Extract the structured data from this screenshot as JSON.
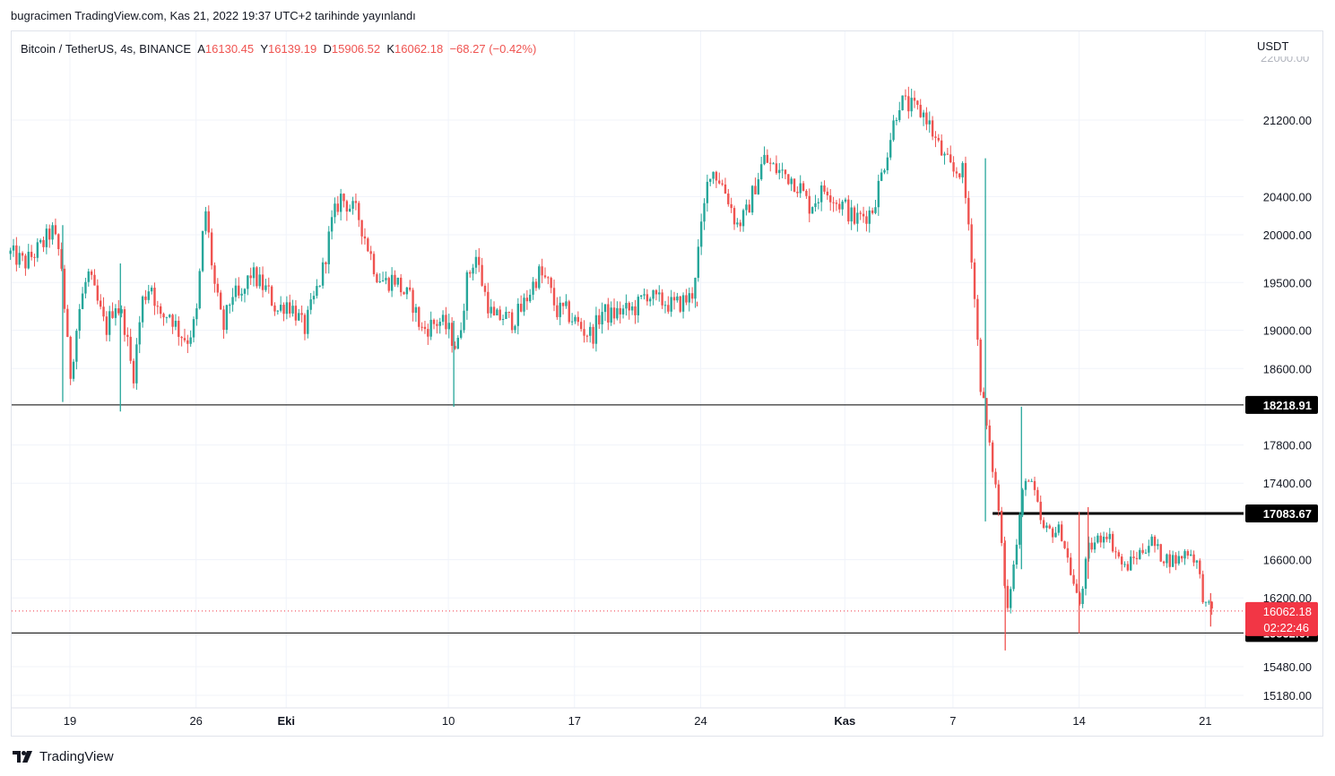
{
  "header": {
    "attribution": "bugracimen TradingView.com, Kas 21, 2022 19:37 UTC+2 tarihinde yayınlandı"
  },
  "legend": {
    "symbol": "Bitcoin / TetherUS, 4s, BINANCE",
    "open_label": "A",
    "open_value": "16130.45",
    "high_label": "Y",
    "high_value": "16139.19",
    "low_label": "D",
    "low_value": "15906.52",
    "close_label": "K",
    "close_value": "16062.18",
    "change": "−68.27 (−0.42%)"
  },
  "footer": {
    "brand": "TradingView"
  },
  "colors": {
    "up": "#26a69a",
    "down": "#ef5350",
    "level_line": "#000000",
    "price_tag": "#f23645",
    "grid": "#f0f3fa"
  },
  "chart_data": {
    "type": "candlestick",
    "currency": "USDT",
    "ylim": [
      15050,
      22050
    ],
    "y_ticks": [
      21200,
      20400,
      20000,
      19500,
      19000,
      18600,
      17800,
      17400,
      16600,
      16200,
      15480,
      15180
    ],
    "y_tick_labels": [
      "21200.00",
      "20400.00",
      "20000.00",
      "19500.00",
      "19000.00",
      "18600.00",
      "17800.00",
      "17400.00",
      "16600.00",
      "16200.00",
      "15480.00",
      "15180.00"
    ],
    "x_labels": [
      {
        "label": "19",
        "day": 0,
        "bold": false
      },
      {
        "label": "26",
        "day": 7,
        "bold": false
      },
      {
        "label": "Eki",
        "day": 12,
        "bold": true
      },
      {
        "label": "10",
        "day": 21,
        "bold": false
      },
      {
        "label": "17",
        "day": 28,
        "bold": false
      },
      {
        "label": "24",
        "day": 35,
        "bold": false
      },
      {
        "label": "Kas",
        "day": 43,
        "bold": true
      },
      {
        "label": "7",
        "day": 49,
        "bold": false
      },
      {
        "label": "14",
        "day": 56,
        "bold": false
      },
      {
        "label": "21",
        "day": 63,
        "bold": false
      }
    ],
    "horizontal_levels": [
      {
        "value": 18218.91,
        "label": "18218.91",
        "from_day": -3.4,
        "weight": 1
      },
      {
        "value": 17083.67,
        "label": "17083.67",
        "from_day": 51.2,
        "weight": 3
      },
      {
        "value": 15832.67,
        "label": "15832.67",
        "from_day": -3.4,
        "weight": 1
      }
    ],
    "last_price": {
      "value": 16062.18,
      "label": "16062.18",
      "countdown": "02:22:46"
    },
    "close_path": [
      [
        -3.3,
        19800
      ],
      [
        -2.5,
        19700
      ],
      [
        -1.5,
        19900
      ],
      [
        -1.0,
        20050
      ],
      [
        -0.5,
        19750
      ],
      [
        0.0,
        18500
      ],
      [
        0.5,
        19200
      ],
      [
        1.0,
        19600
      ],
      [
        1.5,
        19300
      ],
      [
        2.0,
        19000
      ],
      [
        2.5,
        19300
      ],
      [
        3.0,
        19100
      ],
      [
        3.5,
        18500
      ],
      [
        4.0,
        19300
      ],
      [
        4.5,
        19500
      ],
      [
        5.0,
        19100
      ],
      [
        5.5,
        19200
      ],
      [
        6.0,
        19000
      ],
      [
        6.5,
        18900
      ],
      [
        7.0,
        19100
      ],
      [
        7.5,
        20300
      ],
      [
        8.0,
        19500
      ],
      [
        8.5,
        19000
      ],
      [
        9.0,
        19400
      ],
      [
        9.5,
        19300
      ],
      [
        10.0,
        19600
      ],
      [
        10.5,
        19500
      ],
      [
        11.0,
        19400
      ],
      [
        11.5,
        19200
      ],
      [
        12.0,
        19300
      ],
      [
        12.5,
        19200
      ],
      [
        13.0,
        19000
      ],
      [
        13.5,
        19300
      ],
      [
        14.0,
        19600
      ],
      [
        14.5,
        20100
      ],
      [
        15.0,
        20400
      ],
      [
        15.5,
        20300
      ],
      [
        16.0,
        20200
      ],
      [
        16.5,
        19900
      ],
      [
        17.0,
        19600
      ],
      [
        17.5,
        19500
      ],
      [
        18.0,
        19550
      ],
      [
        18.5,
        19400
      ],
      [
        19.0,
        19300
      ],
      [
        19.5,
        19000
      ],
      [
        20.0,
        19050
      ],
      [
        20.5,
        19100
      ],
      [
        21.0,
        19000
      ],
      [
        21.5,
        18800
      ],
      [
        22.0,
        19500
      ],
      [
        22.5,
        19800
      ],
      [
        23.0,
        19400
      ],
      [
        23.5,
        19100
      ],
      [
        24.0,
        19150
      ],
      [
        24.5,
        19100
      ],
      [
        25.0,
        19200
      ],
      [
        25.5,
        19400
      ],
      [
        26.0,
        19600
      ],
      [
        26.5,
        19500
      ],
      [
        27.0,
        19200
      ],
      [
        27.5,
        19200
      ],
      [
        28.0,
        19100
      ],
      [
        28.5,
        19000
      ],
      [
        29.0,
        18950
      ],
      [
        29.5,
        19200
      ],
      [
        30.0,
        19150
      ],
      [
        30.5,
        19200
      ],
      [
        31.0,
        19200
      ],
      [
        31.5,
        19250
      ],
      [
        32.0,
        19400
      ],
      [
        32.5,
        19300
      ],
      [
        33.0,
        19300
      ],
      [
        33.5,
        19250
      ],
      [
        34.0,
        19300
      ],
      [
        34.5,
        19350
      ],
      [
        35.0,
        20000
      ],
      [
        35.5,
        20700
      ],
      [
        36.0,
        20600
      ],
      [
        36.5,
        20400
      ],
      [
        37.0,
        20100
      ],
      [
        37.5,
        20200
      ],
      [
        38.0,
        20500
      ],
      [
        38.5,
        20800
      ],
      [
        39.0,
        20700
      ],
      [
        39.5,
        20650
      ],
      [
        40.0,
        20600
      ],
      [
        40.5,
        20500
      ],
      [
        41.0,
        20300
      ],
      [
        41.5,
        20400
      ],
      [
        42.0,
        20500
      ],
      [
        42.5,
        20350
      ],
      [
        43.0,
        20300
      ],
      [
        43.5,
        20150
      ],
      [
        44.0,
        20200
      ],
      [
        44.5,
        20250
      ],
      [
        45.0,
        20600
      ],
      [
        45.5,
        21000
      ],
      [
        46.0,
        21400
      ],
      [
        46.5,
        21350
      ],
      [
        47.0,
        21300
      ],
      [
        47.5,
        21250
      ],
      [
        48.0,
        21000
      ],
      [
        48.5,
        20800
      ],
      [
        49.0,
        20650
      ],
      [
        49.5,
        20700
      ],
      [
        50.0,
        19900
      ],
      [
        50.5,
        18500
      ],
      [
        51.0,
        17800
      ],
      [
        51.5,
        17200
      ],
      [
        52.0,
        16100
      ],
      [
        52.5,
        16700
      ],
      [
        53.0,
        17500
      ],
      [
        53.5,
        17300
      ],
      [
        54.0,
        16900
      ],
      [
        54.5,
        16900
      ],
      [
        55.0,
        16900
      ],
      [
        55.5,
        16500
      ],
      [
        56.0,
        16100
      ],
      [
        56.5,
        16700
      ],
      [
        57.0,
        16800
      ],
      [
        57.5,
        16900
      ],
      [
        58.0,
        16700
      ],
      [
        58.5,
        16500
      ],
      [
        59.0,
        16600
      ],
      [
        59.5,
        16700
      ],
      [
        60.0,
        16800
      ],
      [
        60.5,
        16650
      ],
      [
        61.0,
        16600
      ],
      [
        61.5,
        16600
      ],
      [
        62.0,
        16700
      ],
      [
        62.5,
        16600
      ],
      [
        63.0,
        16100
      ],
      [
        63.5,
        16062
      ]
    ],
    "spikes": [
      {
        "day": -0.4,
        "high": 20100,
        "low": 18250
      },
      {
        "day": 2.8,
        "high": 19700,
        "low": 18150
      },
      {
        "day": 21.3,
        "high": 19100,
        "low": 18200
      },
      {
        "day": 34.8,
        "high": 19300,
        "low": 19250
      },
      {
        "day": 50.8,
        "high": 20800,
        "low": 17000
      },
      {
        "day": 51.9,
        "high": 16800,
        "low": 15650
      },
      {
        "day": 52.8,
        "high": 18200,
        "low": 16500
      },
      {
        "day": 56.0,
        "high": 17100,
        "low": 15830
      },
      {
        "day": 56.5,
        "high": 17150,
        "low": 16400
      },
      {
        "day": 63.3,
        "high": 16250,
        "low": 15900
      }
    ]
  }
}
